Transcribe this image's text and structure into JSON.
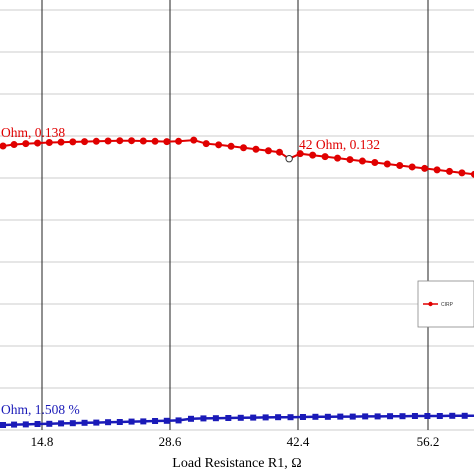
{
  "chart_data": {
    "type": "line",
    "xlabel": "Load Resistance R1, Ω",
    "x_ticks": [
      "14.8",
      "28.6",
      "42.4",
      "56.2"
    ],
    "xlim": [
      1.0,
      70.0
    ],
    "grid": true,
    "legend_placement": "right",
    "series": [
      {
        "name": "CIRP",
        "color": "#e00000",
        "marker": "circle",
        "axis": "upper",
        "ylim": [
          0.08,
          0.18
        ],
        "x": [
          1.0,
          2.6,
          4.3,
          6.0,
          7.7,
          9.4,
          11.1,
          12.8,
          14.5,
          16.2,
          17.9,
          19.6,
          21.3,
          23.0,
          24.7,
          26.4,
          28.6,
          30.4,
          32.2,
          34.0,
          35.8,
          37.6,
          39.4,
          41.0,
          42.4,
          44.0,
          45.8,
          47.6,
          49.4,
          51.2,
          53.0,
          54.8,
          56.6,
          58.4,
          60.2,
          62.0,
          63.8,
          65.6,
          67.4,
          69.2
        ],
        "y": [
          0.1363,
          0.1368,
          0.1371,
          0.1373,
          0.1375,
          0.1376,
          0.1377,
          0.1378,
          0.1379,
          0.138,
          0.1381,
          0.1381,
          0.138,
          0.1379,
          0.1378,
          0.1379,
          0.1383,
          0.1371,
          0.1367,
          0.1362,
          0.1357,
          0.1352,
          0.1347,
          0.1342,
          0.132,
          0.1337,
          0.1332,
          0.1327,
          0.1322,
          0.1317,
          0.1312,
          0.1307,
          0.1302,
          0.1297,
          0.1292,
          0.1287,
          0.1282,
          0.1277,
          0.1272,
          0.1267
        ],
        "highlight_index": 24
      },
      {
        "name": "",
        "color": "#1a1ab8",
        "marker": "square",
        "axis": "lower",
        "ylim": [
          1.0,
          2.0
        ],
        "x": [
          1.0,
          2.6,
          4.3,
          6.0,
          7.7,
          9.4,
          11.1,
          12.8,
          14.5,
          16.2,
          17.9,
          19.6,
          21.3,
          23.0,
          24.7,
          26.4,
          28.2,
          30.0,
          31.8,
          33.6,
          35.4,
          37.2,
          39.0,
          40.8,
          42.6,
          44.4,
          46.2,
          48.0,
          49.8,
          51.6,
          53.4,
          55.2,
          57.0,
          58.8,
          60.6,
          62.4,
          64.2,
          66.0,
          67.8,
          69.6
        ],
        "y": [
          1.195,
          1.197,
          1.198,
          1.2,
          1.201,
          1.203,
          1.204,
          1.206,
          1.207,
          1.209,
          1.21,
          1.212,
          1.213,
          1.215,
          1.216,
          1.218,
          1.226,
          1.228,
          1.229,
          1.23,
          1.231,
          1.232,
          1.233,
          1.234,
          1.234,
          1.235,
          1.236,
          1.236,
          1.237,
          1.237,
          1.238,
          1.238,
          1.239,
          1.239,
          1.24,
          1.24,
          1.24,
          1.241,
          1.241,
          1.241
        ]
      }
    ],
    "annotations": [
      {
        "text": "Ohm, 0.138",
        "series": 0
      },
      {
        "text": "42 Ohm, 0.132",
        "series": 0
      },
      {
        "text": "Ohm, 1.508 %",
        "series": 1
      }
    ],
    "legend": [
      {
        "label": "CIRP",
        "series": 0
      }
    ]
  }
}
